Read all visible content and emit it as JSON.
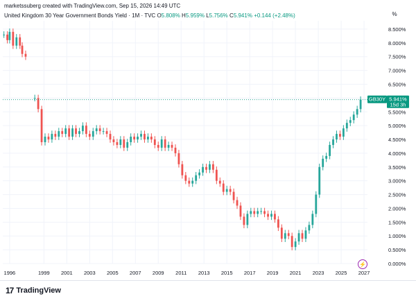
{
  "header": {
    "credit": "marketssuberg created with TradingView.com, Sep 15, 2026 14:49 UTC",
    "legend_title": "United Kingdom 30 Year Government Bonds Yield · 1M · TVC",
    "open_label": "O",
    "open_value": "5.808%",
    "high_label": "H",
    "high_value": "5.959%",
    "low_label": "L",
    "low_value": "5.756%",
    "close_label": "C",
    "close_value": "5.941%",
    "change": "+0.144 (+2.48%)",
    "scale_button": "%"
  },
  "price_tag": {
    "symbol": "GB30Y",
    "value": "5.941%",
    "countdown": "15d 3h"
  },
  "branding": {
    "logo_mark": "17",
    "logo_text": "TradingView"
  },
  "event_icon": "lightning-icon",
  "colors": {
    "up": "#26a69a",
    "down": "#ef5350",
    "accent": "#089981",
    "grid": "#f0f3fa",
    "event": "#9c27b0"
  },
  "chart_data": {
    "type": "candlestick",
    "title": "United Kingdom 30 Year Government Bonds Yield · 1M · TVC",
    "x_tick_labels": [
      "1996",
      "1999",
      "2001",
      "2003",
      "2005",
      "2007",
      "2009",
      "2011",
      "2013",
      "2015",
      "2017",
      "2019",
      "2021",
      "2023",
      "2025",
      "2027"
    ],
    "y_tick_labels": [
      "8.500%",
      "8.000%",
      "7.500%",
      "7.000%",
      "6.500%",
      "6.000%",
      "5.500%",
      "5.000%",
      "4.500%",
      "4.000%",
      "3.500%",
      "3.000%",
      "2.500%",
      "2.000%",
      "1.500%",
      "1.000%",
      "0.500%",
      "0.000%"
    ],
    "ylim": [
      0,
      8.8
    ],
    "xlim": [
      1995.4,
      2027.3
    ],
    "grid": true,
    "current_value": 5.941,
    "series": [
      {
        "x": [
          1995.5,
          1995.8,
          1996.0,
          1996.3,
          1996.6,
          1996.9,
          1997.1,
          1997.4,
          1997.6,
          1997.9,
          1998.2,
          1998.5,
          1998.8,
          1999.1,
          1999.4,
          1999.7,
          2000.0,
          2000.3,
          2000.6,
          2000.9,
          2001.2,
          2001.5,
          2001.8,
          2002.1,
          2002.4,
          2002.7,
          2003.0,
          2003.3,
          2003.6,
          2003.9,
          2004.2,
          2004.5,
          2004.8,
          2005.1,
          2005.4,
          2005.7,
          2006.0,
          2006.3,
          2006.6,
          2006.9,
          2007.2,
          2007.5,
          2007.8,
          2008.1,
          2008.4,
          2008.7,
          2009.0,
          2009.3,
          2009.6,
          2009.9,
          2010.2,
          2010.5,
          2010.8,
          2011.1,
          2011.4,
          2011.7,
          2012.0,
          2012.3,
          2012.6,
          2012.9,
          2013.2,
          2013.5,
          2013.8,
          2014.1,
          2014.4,
          2014.7,
          2015.0,
          2015.3,
          2015.6,
          2015.9,
          2016.2,
          2016.5,
          2016.8,
          2017.1,
          2017.4,
          2017.7,
          2018.0,
          2018.3,
          2018.6,
          2018.9,
          2019.2,
          2019.5,
          2019.8,
          2020.1,
          2020.4,
          2020.7,
          2021.0,
          2021.3,
          2021.6,
          2021.9,
          2022.2,
          2022.5,
          2022.8,
          2023.1,
          2023.4,
          2023.7,
          2024.0,
          2024.3,
          2024.6,
          2024.9,
          2025.2,
          2025.5,
          2025.8,
          2026.1,
          2026.4,
          2026.7
        ],
        "values": [
          8.3,
          8.1,
          8.4,
          7.9,
          8.2,
          7.9,
          7.6,
          7.5,
          null,
          null,
          6.0,
          5.6,
          4.4,
          4.6,
          4.5,
          4.7,
          4.6,
          4.8,
          4.7,
          4.9,
          4.6,
          4.9,
          4.7,
          4.8,
          5.0,
          4.7,
          4.6,
          4.8,
          4.9,
          4.8,
          4.8,
          4.7,
          4.5,
          4.4,
          4.3,
          4.5,
          4.2,
          4.4,
          4.6,
          4.5,
          4.6,
          4.7,
          4.5,
          4.6,
          4.5,
          4.3,
          4.2,
          4.5,
          4.2,
          4.3,
          4.2,
          4.0,
          3.6,
          3.2,
          3.0,
          2.9,
          3.0,
          3.2,
          3.3,
          3.5,
          3.4,
          3.6,
          3.4,
          3.0,
          2.9,
          2.6,
          2.7,
          2.6,
          2.3,
          2.1,
          1.7,
          1.4,
          1.8,
          1.9,
          1.8,
          1.9,
          1.9,
          1.8,
          1.7,
          1.8,
          1.6,
          1.3,
          0.9,
          1.1,
          1.0,
          0.6,
          0.8,
          1.1,
          0.9,
          1.2,
          1.4,
          1.8,
          2.5,
          3.5,
          3.8,
          3.9,
          4.3,
          4.5,
          4.7,
          4.6,
          4.9,
          5.1,
          5.2,
          5.4,
          5.6,
          5.94
        ]
      }
    ]
  }
}
